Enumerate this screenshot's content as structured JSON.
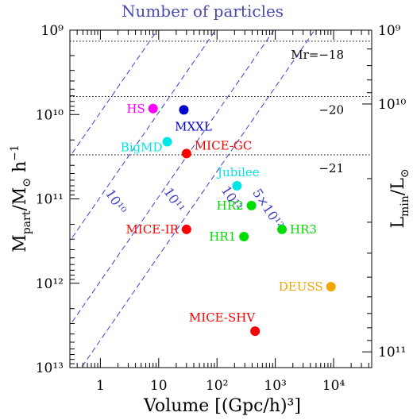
{
  "chart_data": {
    "type": "scatter",
    "title": "Number of particles",
    "xlabel": "Volume [(Gpc/h)³]",
    "ylabel": "M_part/M_⊙ h⁻¹",
    "ylabel_right": "L_min/L_⊙",
    "x_scale": "log",
    "y_scale": "log",
    "y_inverted": true,
    "xlim": [
      0.3,
      45000
    ],
    "ylim": [
      1000000000.0,
      10000000000000.0
    ],
    "x_ticks": [
      {
        "value": 1,
        "label": "1"
      },
      {
        "value": 10,
        "label": "10"
      },
      {
        "value": 100,
        "label": "10²"
      },
      {
        "value": 1000,
        "label": "10³"
      },
      {
        "value": 10000,
        "label": "10⁴"
      }
    ],
    "y_ticks": [
      {
        "value": 1000000000.0,
        "label": "10⁹"
      },
      {
        "value": 10000000000.0,
        "label": "10¹⁰"
      },
      {
        "value": 100000000000.0,
        "label": "10¹¹"
      },
      {
        "value": 1000000000000.0,
        "label": "10¹²"
      },
      {
        "value": 10000000000000.0,
        "label": "10¹³"
      }
    ],
    "y_ticks_right": [
      {
        "value": 1000000000.0,
        "label": "10⁹"
      },
      {
        "value": 7500000000.0,
        "label": "10¹⁰"
      },
      {
        "value": 6500000000000.0,
        "label": "10¹¹"
      }
    ],
    "grid": false,
    "particle_lines": [
      {
        "label": "10¹⁰",
        "n": 10000000000.0,
        "label_at": [
          1.6,
          115000000000.0
        ],
        "label_angle": 57
      },
      {
        "label": "10¹¹",
        "n": 100000000000.0,
        "label_at": [
          16,
          110000000000.0
        ],
        "label_angle": 57
      },
      {
        "label": "10¹²",
        "n": 1000000000000.0,
        "label_at": [
          155,
          105000000000.0
        ],
        "label_angle": 57
      },
      {
        "label": "5×10¹²",
        "n": 5000000000000.0,
        "label_at": [
          650,
          140000000000.0
        ],
        "label_angle": 57
      }
    ],
    "magnitude_lines": [
      {
        "label": "Mr=−18",
        "mass": 1350000000.0
      },
      {
        "label": "−20",
        "mass": 6100000000.0
      },
      {
        "label": "−21",
        "mass": 30000000000.0
      }
    ],
    "points": [
      {
        "name": "HS",
        "x": 8,
        "y": 8500000000.0,
        "color": "#ff00ff",
        "label_side": "left"
      },
      {
        "name": "MXXL",
        "x": 27,
        "y": 8800000000.0,
        "color": "#0000cc",
        "label_side": "below"
      },
      {
        "name": "BigMD",
        "x": 14,
        "y": 21000000000.0,
        "color": "#00e5e5",
        "label_side": "left-below"
      },
      {
        "name": "MICE-GC",
        "x": 30,
        "y": 29000000000.0,
        "color": "#ff0000",
        "label_side": "right-above"
      },
      {
        "name": "Jubilee",
        "x": 220,
        "y": 70000000000.0,
        "color": "#00e5e5",
        "label_side": "above"
      },
      {
        "name": "HR2",
        "x": 390,
        "y": 120000000000.0,
        "color": "#00dd00",
        "label_side": "left"
      },
      {
        "name": "MICE-IR",
        "x": 30,
        "y": 230000000000.0,
        "color": "#ff0000",
        "label_side": "left"
      },
      {
        "name": "HR1",
        "x": 290,
        "y": 280000000000.0,
        "color": "#00dd00",
        "label_side": "left"
      },
      {
        "name": "HR3",
        "x": 1300,
        "y": 230000000000.0,
        "color": "#00dd00",
        "label_side": "right"
      },
      {
        "name": "DEUSS",
        "x": 9000,
        "y": 1100000000000.0,
        "color": "#f0a800",
        "label_side": "left"
      },
      {
        "name": "MICE-SHV",
        "x": 450,
        "y": 3700000000000.0,
        "color": "#ff0000",
        "label_side": "above-left"
      }
    ],
    "colors": {
      "particle_lines": "#4040c8",
      "title": "#4a4ab0",
      "axes": "#000000"
    }
  }
}
